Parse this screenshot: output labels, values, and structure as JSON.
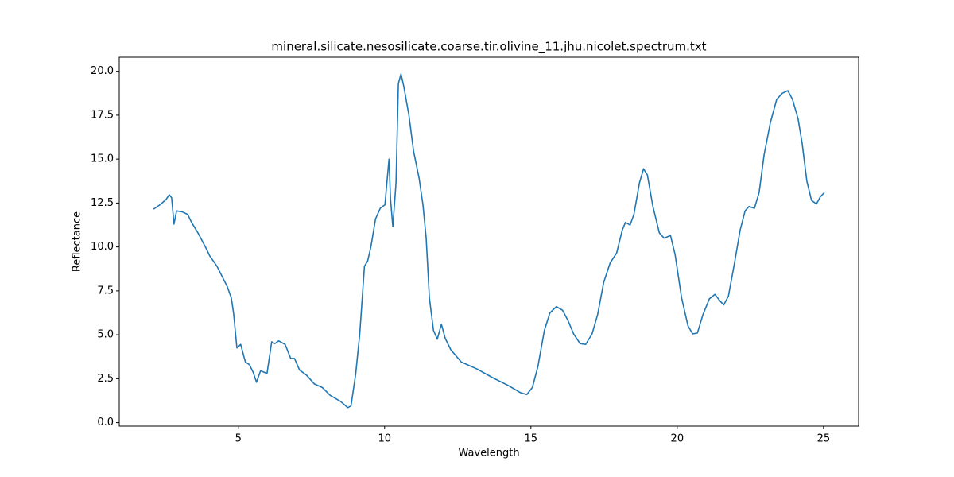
{
  "chart_data": {
    "type": "line",
    "title": "mineral.silicate.nesosilicate.coarse.tir.olivine_11.jhu.nicolet.spectrum.txt",
    "xlabel": "Wavelength",
    "ylabel": "Reflectance",
    "color": "#1f77b4",
    "x": [
      2.1,
      2.32,
      2.53,
      2.64,
      2.72,
      2.8,
      2.89,
      3.08,
      3.27,
      3.4,
      3.62,
      3.89,
      4.02,
      4.27,
      4.62,
      4.76,
      4.84,
      4.95,
      5.08,
      5.24,
      5.38,
      5.51,
      5.62,
      5.76,
      5.98,
      6.14,
      6.25,
      6.38,
      6.6,
      6.79,
      6.92,
      7.09,
      7.33,
      7.6,
      7.87,
      8.14,
      8.5,
      8.74,
      8.85,
      9.01,
      9.15,
      9.31,
      9.42,
      9.53,
      9.69,
      9.85,
      10.01,
      10.09,
      10.15,
      10.2,
      10.28,
      10.39,
      10.47,
      10.56,
      10.66,
      10.83,
      10.99,
      11.18,
      11.31,
      11.42,
      11.53,
      11.67,
      11.8,
      11.94,
      12.07,
      12.26,
      12.62,
      13.16,
      13.7,
      14.24,
      14.65,
      14.86,
      15.05,
      15.24,
      15.46,
      15.65,
      15.87,
      16.08,
      16.27,
      16.46,
      16.68,
      16.87,
      17.09,
      17.28,
      17.49,
      17.71,
      17.93,
      18.12,
      18.23,
      18.39,
      18.52,
      18.71,
      18.85,
      18.98,
      19.17,
      19.39,
      19.55,
      19.77,
      19.93,
      20.15,
      20.37,
      20.53,
      20.69,
      20.88,
      21.1,
      21.29,
      21.45,
      21.59,
      21.75,
      21.96,
      22.15,
      22.32,
      22.45,
      22.64,
      22.8,
      22.97,
      23.18,
      23.4,
      23.59,
      23.78,
      23.94,
      24.13,
      24.27,
      24.43,
      24.59,
      24.76,
      24.89,
      25.03
    ],
    "values": [
      12.15,
      12.4,
      12.7,
      12.97,
      12.8,
      11.3,
      12.05,
      12.0,
      11.85,
      11.4,
      10.8,
      9.95,
      9.5,
      8.9,
      7.75,
      7.1,
      6.2,
      4.25,
      4.45,
      3.45,
      3.3,
      2.85,
      2.3,
      2.95,
      2.8,
      4.6,
      4.5,
      4.65,
      4.45,
      3.65,
      3.65,
      3.0,
      2.7,
      2.2,
      2.0,
      1.55,
      1.2,
      0.85,
      0.95,
      2.75,
      5.05,
      8.9,
      9.2,
      10.0,
      11.6,
      12.2,
      12.4,
      13.9,
      15.0,
      12.75,
      11.15,
      13.65,
      19.3,
      19.85,
      19.1,
      17.5,
      15.45,
      13.9,
      12.4,
      10.5,
      7.1,
      5.25,
      4.75,
      5.6,
      4.8,
      4.15,
      3.45,
      3.05,
      2.55,
      2.1,
      1.7,
      1.6,
      2.0,
      3.2,
      5.25,
      6.25,
      6.6,
      6.4,
      5.8,
      5.05,
      4.5,
      4.45,
      5.05,
      6.15,
      8.0,
      9.1,
      9.65,
      10.95,
      11.4,
      11.25,
      11.85,
      13.65,
      14.45,
      14.1,
      12.3,
      10.8,
      10.5,
      10.65,
      9.55,
      7.1,
      5.5,
      5.05,
      5.1,
      6.15,
      7.05,
      7.3,
      6.95,
      6.7,
      7.2,
      9.1,
      10.95,
      12.05,
      12.3,
      12.2,
      13.1,
      15.25,
      17.05,
      18.4,
      18.75,
      18.9,
      18.4,
      17.3,
      15.9,
      13.75,
      12.65,
      12.45,
      12.85,
      13.1
    ],
    "xlim": [
      0.93,
      26.2
    ],
    "ylim": [
      -0.2,
      20.8
    ],
    "xticks": [
      5,
      10,
      15,
      20,
      25
    ],
    "yticks": [
      {
        "value": 0,
        "label": "0.0"
      },
      2.5,
      {
        "value": 5,
        "label": "5.0"
      },
      7.5,
      {
        "value": 10,
        "label": "10.0"
      },
      12.5,
      {
        "value": 15,
        "label": "15.0"
      },
      17.5,
      {
        "value": 20,
        "label": "20.0"
      }
    ]
  }
}
